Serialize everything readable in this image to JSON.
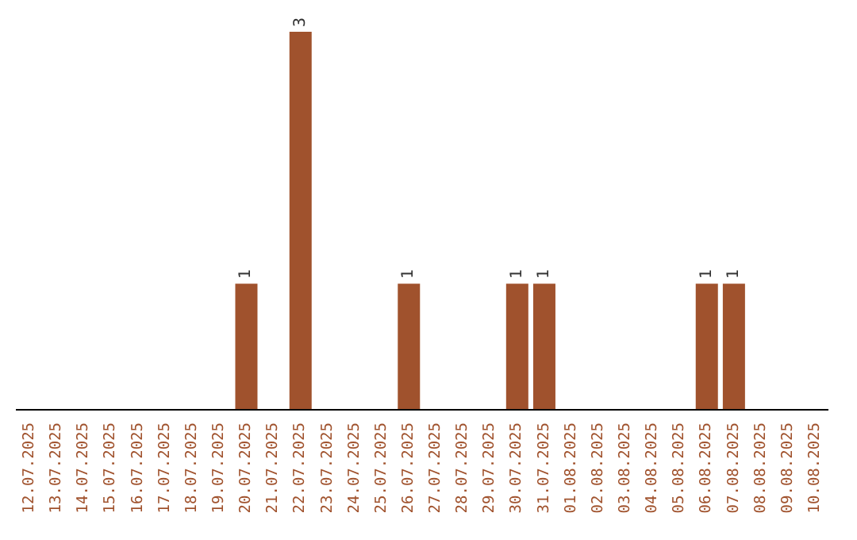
{
  "chart_data": {
    "type": "bar",
    "categories": [
      "12.07.2025",
      "13.07.2025",
      "14.07.2025",
      "15.07.2025",
      "16.07.2025",
      "17.07.2025",
      "18.07.2025",
      "19.07.2025",
      "20.07.2025",
      "21.07.2025",
      "22.07.2025",
      "23.07.2025",
      "24.07.2025",
      "25.07.2025",
      "26.07.2025",
      "27.07.2025",
      "28.07.2025",
      "29.07.2025",
      "30.07.2025",
      "31.07.2025",
      "01.08.2025",
      "02.08.2025",
      "03.08.2025",
      "04.08.2025",
      "05.08.2025",
      "06.08.2025",
      "07.08.2025",
      "08.08.2025",
      "09.08.2025",
      "10.08.2025"
    ],
    "values": [
      0,
      0,
      0,
      0,
      0,
      0,
      0,
      0,
      1,
      0,
      3,
      0,
      0,
      0,
      1,
      0,
      0,
      0,
      1,
      1,
      0,
      0,
      0,
      0,
      0,
      1,
      1,
      0,
      0,
      0
    ],
    "value_labels": [
      null,
      null,
      null,
      null,
      null,
      null,
      null,
      null,
      "1",
      null,
      "3",
      null,
      null,
      null,
      "1",
      null,
      null,
      null,
      "1",
      "1",
      null,
      null,
      null,
      null,
      null,
      "1",
      "1",
      null,
      null,
      null
    ],
    "color": "#a0522d",
    "tick_labels": "x"
  }
}
